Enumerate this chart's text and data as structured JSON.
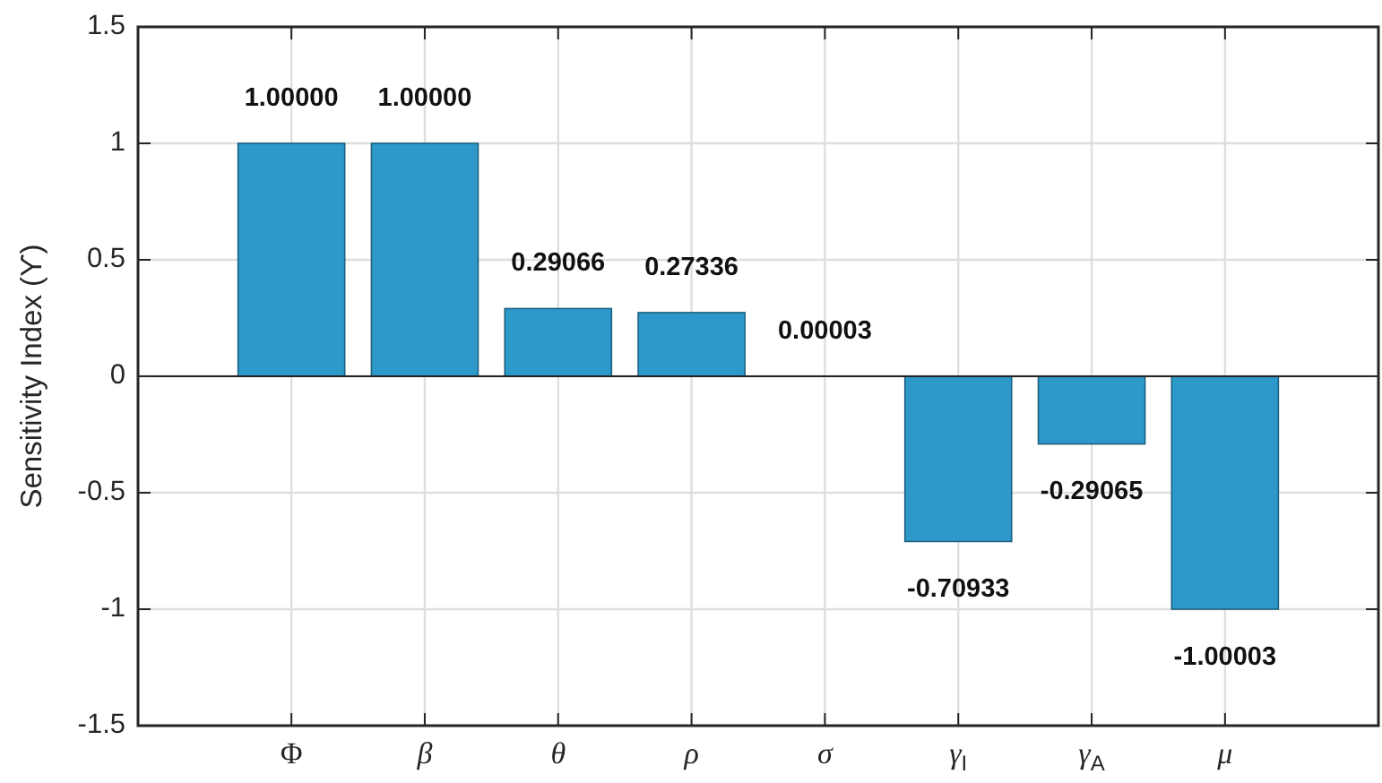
{
  "chart_data": {
    "type": "bar",
    "ylabel": "Sensitivity Index (ϒ)",
    "categories": [
      "Φ",
      "β",
      "θ",
      "ρ",
      "σ",
      "γ$_{I}$",
      "γ$_{A}$",
      "μ"
    ],
    "values": [
      1,
      1,
      0.29066,
      0.27336,
      3e-05,
      -0.70933,
      -0.29065,
      -1.00003
    ],
    "color": "#2c99ca",
    "value_labels": [
      "1.00000",
      "1.00000",
      "0.29066",
      "0.27336",
      "0.00003",
      "-0.70933",
      "-0.29065",
      "-1.00003"
    ],
    "ylim": [
      -1.5,
      1.5
    ],
    "yticks": [
      -1.5,
      -1,
      -0.5,
      0,
      0.5,
      1,
      1.5
    ],
    "grid": true
  }
}
